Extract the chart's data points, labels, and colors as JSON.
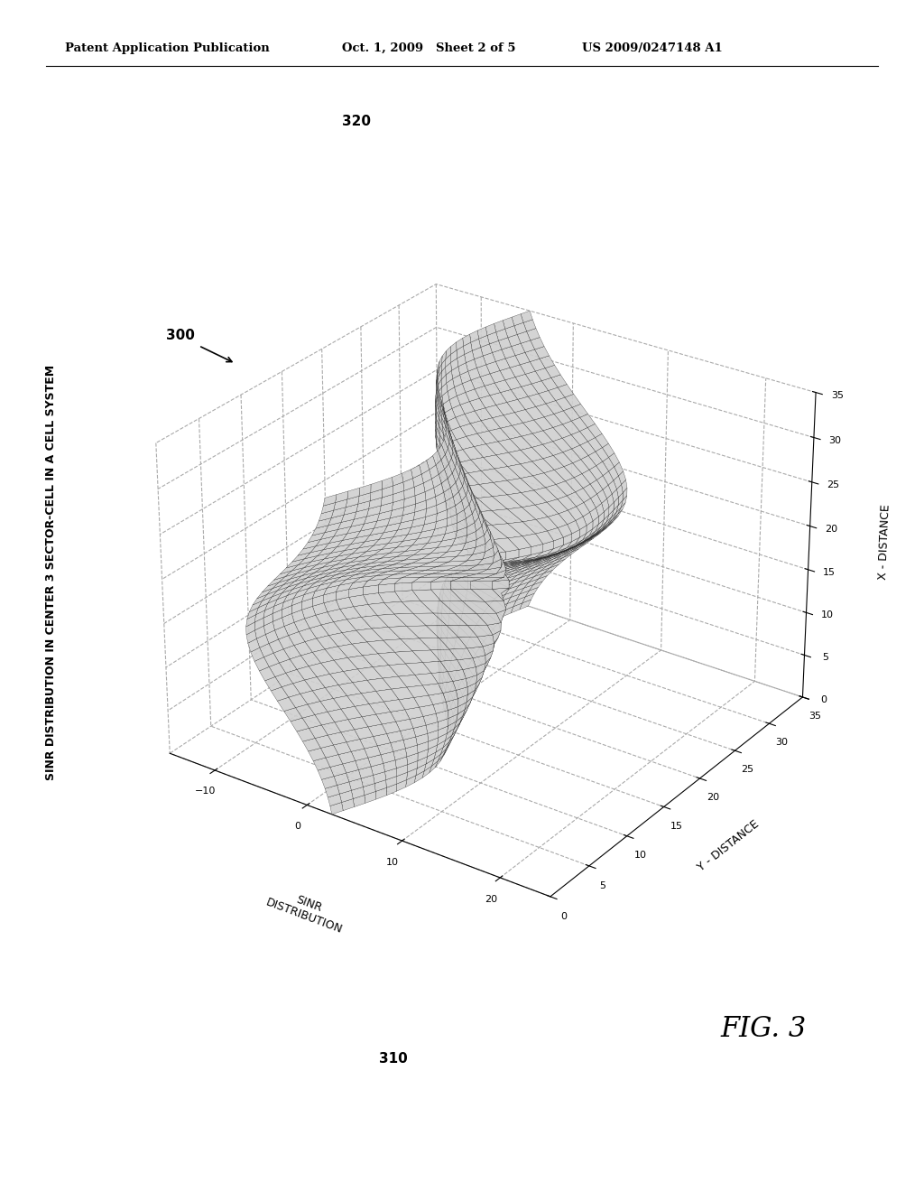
{
  "header_left": "Patent Application Publication",
  "header_mid": "Oct. 1, 2009   Sheet 2 of 5",
  "header_right": "US 2009/0247148 A1",
  "title": "SINR DISTRIBUTION IN CENTER 3 SECTOR-CELL IN A CELL SYSTEM",
  "fig_label": "FIG. 3",
  "label_300": "300",
  "label_310": "310",
  "label_320": "320",
  "sinr_label": "SINR\nDISTRIBUTION",
  "y_label": "Y - DISTANCE",
  "x_label": "X - DISTANCE",
  "sinr_ticks": [
    -10,
    0,
    10,
    20
  ],
  "y_ticks": [
    0,
    5,
    10,
    15,
    20,
    25,
    30,
    35
  ],
  "x_ticks": [
    0,
    5,
    10,
    15,
    20,
    25,
    30,
    35
  ],
  "sinr_lim": [
    -15,
    25
  ],
  "y_lim": [
    0,
    35
  ],
  "x_lim": [
    0,
    35
  ],
  "elev": 28,
  "azim": -55,
  "surface_face_color": "#d0d0d0",
  "surface_edge_color": "#111111",
  "background_color": "#ffffff",
  "grid_line_style": "--",
  "grid_color": "#aaaaaa",
  "n_points": 40
}
